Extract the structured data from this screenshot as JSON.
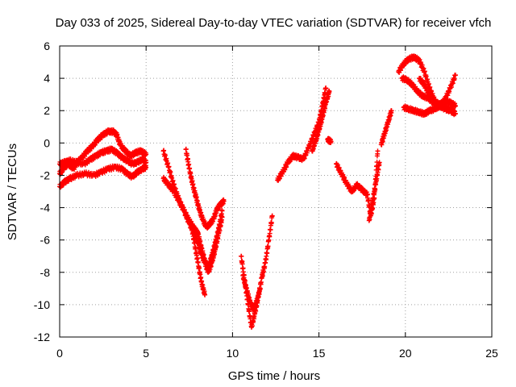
{
  "chart_data": {
    "type": "scatter",
    "title": "Day 033 of 2025, Sidereal Day-to-day VTEC variation (SDTVAR) for receiver vfch",
    "xlabel": "GPS time / hours",
    "ylabel": "SDTVAR / TECUs",
    "xlim": [
      0,
      25
    ],
    "ylim": [
      -12,
      6
    ],
    "x_ticks": [
      "0",
      "5",
      "10",
      "15",
      "20",
      "25"
    ],
    "y_ticks": [
      "-12",
      "-10",
      "-8",
      "-6",
      "-4",
      "-2",
      "0",
      "2",
      "4",
      "6"
    ],
    "grid": true,
    "legend": "none",
    "marker": "+",
    "color": "#ff0000",
    "series": [
      {
        "x": [
          0.0,
          0.2,
          0.5,
          0.8,
          1.0,
          1.3,
          1.6,
          1.9,
          2.2,
          2.5,
          2.8,
          3.1,
          3.3,
          3.5,
          3.8,
          4.1,
          4.4,
          4.7,
          5.0
        ],
        "y": [
          -1.9,
          -1.6,
          -1.3,
          -1.6,
          -1.2,
          -0.9,
          -0.5,
          -0.2,
          0.2,
          0.5,
          0.7,
          0.7,
          0.5,
          -0.1,
          -0.5,
          -0.8,
          -0.6,
          -0.5,
          -0.7
        ]
      },
      {
        "x": [
          0.0,
          0.3,
          0.6,
          1.0,
          1.4,
          1.8,
          2.1,
          2.4,
          2.7,
          3.0,
          3.3,
          3.6,
          3.9,
          4.2,
          4.5,
          4.8,
          5.0
        ],
        "y": [
          -1.3,
          -1.2,
          -1.1,
          -1.2,
          -1.3,
          -1.0,
          -0.8,
          -0.6,
          -0.5,
          -0.4,
          -0.6,
          -0.9,
          -1.1,
          -1.3,
          -1.2,
          -1.0,
          -1.2
        ]
      },
      {
        "x": [
          0.0,
          0.3,
          0.6,
          1.0,
          1.5,
          2.0,
          2.4,
          2.8,
          3.2,
          3.6,
          3.9,
          4.2,
          4.5,
          4.8,
          5.0
        ],
        "y": [
          -2.7,
          -2.4,
          -2.2,
          -2.0,
          -1.9,
          -2.0,
          -1.8,
          -1.6,
          -1.5,
          -1.6,
          -1.9,
          -2.1,
          -1.8,
          -1.6,
          -1.5
        ]
      },
      {
        "x": [
          6.0,
          6.3,
          6.6,
          6.9,
          7.2,
          7.5,
          7.8,
          8.0,
          8.2,
          8.4,
          8.6,
          8.8,
          9.0,
          9.2,
          9.4
        ],
        "y": [
          -0.5,
          -1.5,
          -2.6,
          -3.5,
          -4.2,
          -4.8,
          -5.3,
          -5.6,
          -6.5,
          -7.3,
          -7.7,
          -7.0,
          -6.2,
          -5.3,
          -4.2
        ]
      },
      {
        "x": [
          6.0,
          6.3,
          6.6,
          6.9,
          7.2,
          7.5,
          7.8,
          8.0,
          8.2,
          8.4,
          8.6,
          8.8,
          9.0,
          9.2,
          9.4
        ],
        "y": [
          -2.2,
          -2.6,
          -3.0,
          -3.6,
          -4.2,
          -5.0,
          -5.6,
          -6.2,
          -6.9,
          -7.4,
          -8.0,
          -7.4,
          -6.6,
          -5.6,
          -4.6
        ]
      },
      {
        "x": [
          7.3,
          7.5,
          7.7,
          7.9,
          8.1,
          8.3,
          8.5,
          8.7,
          8.9,
          9.1,
          9.3,
          9.5
        ],
        "y": [
          -0.4,
          -1.6,
          -2.6,
          -3.4,
          -4.2,
          -4.8,
          -5.2,
          -5.0,
          -4.7,
          -4.1,
          -3.8,
          -3.6
        ]
      },
      {
        "x": [
          7.6,
          7.8,
          8.0,
          8.2,
          8.4
        ],
        "y": [
          -5.0,
          -6.2,
          -7.4,
          -8.6,
          -9.4
        ]
      },
      {
        "x": [
          10.5,
          10.7,
          10.9,
          11.1,
          11.3,
          11.5,
          11.7,
          11.9,
          12.1,
          12.3
        ],
        "y": [
          -7.0,
          -8.5,
          -10.0,
          -11.4,
          -10.5,
          -9.5,
          -8.3,
          -7.4,
          -6.0,
          -4.5
        ]
      },
      {
        "x": [
          10.6,
          10.8,
          11.0,
          11.2,
          11.4,
          11.6
        ],
        "y": [
          -8.2,
          -9.0,
          -9.8,
          -10.3,
          -9.8,
          -9.0
        ]
      },
      {
        "x": [
          12.6,
          12.9,
          13.2,
          13.5,
          13.8,
          14.1,
          14.4,
          14.7,
          15.0,
          15.2,
          15.4
        ],
        "y": [
          -2.3,
          -1.8,
          -1.2,
          -0.8,
          -0.9,
          -1.0,
          -0.3,
          0.5,
          1.3,
          2.3,
          3.4
        ]
      },
      {
        "x": [
          14.6,
          14.8,
          15.0,
          15.2,
          15.4,
          15.6
        ],
        "y": [
          -0.5,
          0.1,
          0.8,
          1.6,
          2.5,
          3.2
        ]
      },
      {
        "x": [
          15.5,
          15.7
        ],
        "y": [
          0.2,
          0.1
        ]
      },
      {
        "x": [
          16.0,
          16.3,
          16.6,
          16.9,
          17.2,
          17.5,
          17.8,
          18.0,
          18.2,
          18.4
        ],
        "y": [
          -1.3,
          -1.9,
          -2.5,
          -3.0,
          -2.6,
          -2.9,
          -3.2,
          -4.5,
          -3.4,
          -0.5
        ]
      },
      {
        "x": [
          17.9,
          18.1,
          18.3,
          18.5
        ],
        "y": [
          -4.8,
          -3.6,
          -2.4,
          -1.2
        ]
      },
      {
        "x": [
          18.6,
          18.8,
          19.0,
          19.2
        ],
        "y": [
          -0.1,
          0.6,
          1.3,
          2.0
        ]
      },
      {
        "x": [
          19.6,
          19.9,
          20.2,
          20.5,
          20.8,
          21.1,
          21.4,
          21.7,
          22.0,
          22.3,
          22.6,
          22.9
        ],
        "y": [
          4.4,
          4.9,
          5.2,
          5.3,
          5.1,
          4.4,
          3.4,
          2.6,
          2.3,
          2.7,
          3.4,
          4.2
        ]
      },
      {
        "x": [
          19.8,
          20.1,
          20.4,
          20.7,
          21.0,
          21.3,
          21.6,
          21.9,
          22.2,
          22.5,
          22.8
        ],
        "y": [
          4.0,
          3.9,
          3.6,
          3.2,
          2.9,
          2.8,
          2.5,
          2.3,
          2.2,
          2.1,
          2.0
        ]
      },
      {
        "x": [
          19.9,
          20.2,
          20.5,
          20.8,
          21.1,
          21.4,
          21.7,
          22.0,
          22.3,
          22.6,
          22.9
        ],
        "y": [
          2.2,
          2.1,
          2.0,
          1.9,
          1.8,
          2.0,
          2.1,
          2.3,
          2.1,
          2.0,
          1.8
        ]
      },
      {
        "x": [
          20.8,
          21.1,
          21.4,
          21.7,
          22.0,
          22.3,
          22.6,
          22.9
        ],
        "y": [
          4.0,
          3.6,
          3.0,
          2.5,
          2.4,
          2.6,
          2.5,
          2.3
        ]
      }
    ]
  }
}
